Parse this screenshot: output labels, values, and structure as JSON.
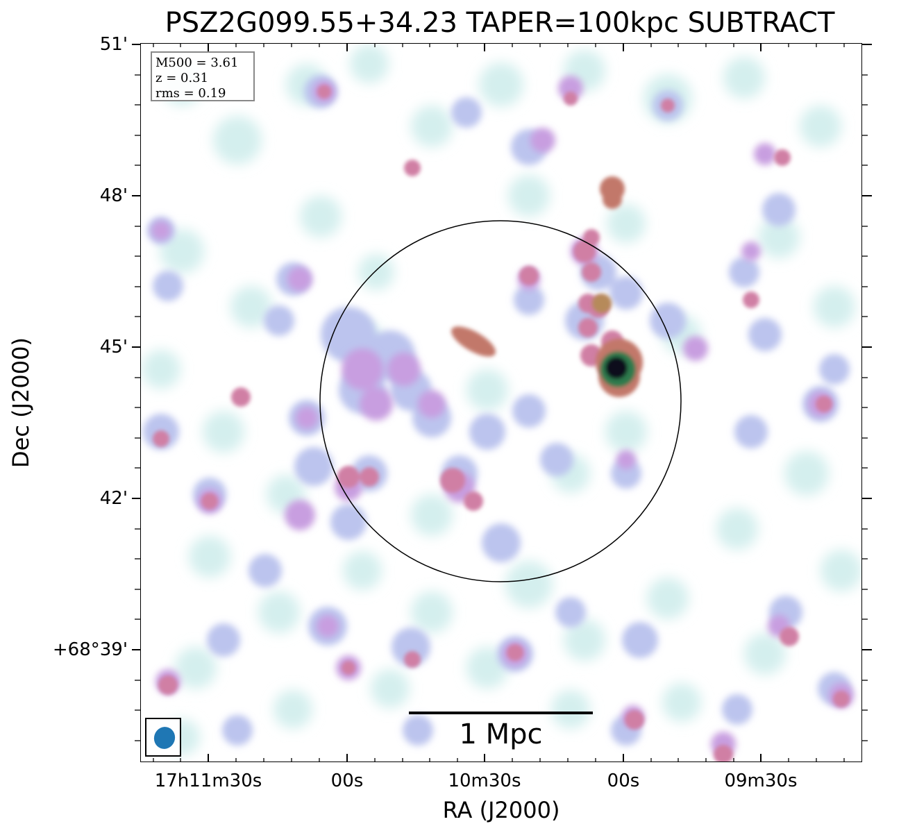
{
  "title": "PSZ2G099.55+34.23 TAPER=100kpc SUBTRACT",
  "xlabel": "RA (J2000)",
  "ylabel": "Dec (J2000)",
  "x_ticks": [
    "17h11m30s",
    "00s",
    "10m30s",
    "00s",
    "09m30s"
  ],
  "y_ticks": [
    "51'",
    "48'",
    "45'",
    "42'",
    "+68°39'"
  ],
  "info": {
    "m500": "M500 = 3.61",
    "z": "z = 0.31",
    "rms": "rms = 0.19"
  },
  "scale_bar_label": "1 Mpc",
  "colors": {
    "faint": "#d4efee",
    "low": "#bcc4ee",
    "mid": "#c89ee0",
    "high": "#d07fa4",
    "bright": "#c2786a",
    "peak_green": "#2f7a4d",
    "core": "#0e0a1c",
    "beam": "#1f77b4"
  }
}
